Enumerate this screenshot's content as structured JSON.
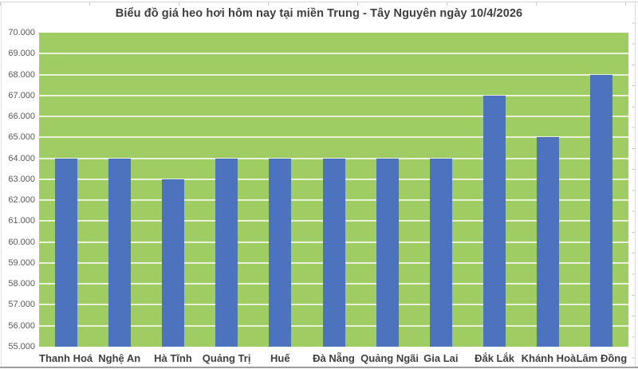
{
  "chart_data": {
    "type": "bar",
    "title": "Biểu đồ giá heo hơi hôm nay tại miền Trung - Tây Nguyên ngày 10/4/2026",
    "categories": [
      "Thanh Hoá",
      "Nghệ An",
      "Hà Tĩnh",
      "Quảng Trị",
      "Huế",
      "Đà Nẵng",
      "Quảng Ngãi",
      "Gia Lai",
      "Đắk Lắk",
      "Khánh Hoà",
      "Lâm Đồng"
    ],
    "values": [
      64000,
      64000,
      63000,
      64000,
      64000,
      64000,
      64000,
      64000,
      67000,
      65000,
      68000
    ],
    "xlabel": "",
    "ylabel": "",
    "ylim": [
      55000,
      70000
    ],
    "ystep": 1000,
    "ytick_labels": [
      "55.000",
      "56.000",
      "57.000",
      "58.000",
      "59.000",
      "60.000",
      "61.000",
      "62.000",
      "63.000",
      "64.000",
      "65.000",
      "66.000",
      "67.000",
      "68.000",
      "69.000",
      "70.000"
    ],
    "grid": true,
    "legend": false,
    "colors": {
      "bar": "#4d73be",
      "plot_background": "#a0cc64",
      "gridline": "rgba(255,255,255,0.75)"
    }
  }
}
